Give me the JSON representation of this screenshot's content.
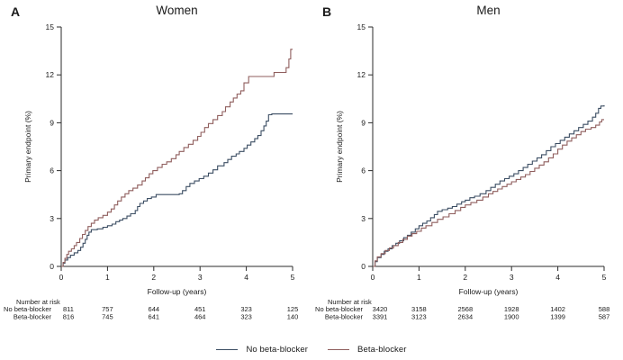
{
  "figure": {
    "background": "#ffffff",
    "legend": {
      "items": [
        {
          "label": "No beta-blocker",
          "color": "#3c4e63"
        },
        {
          "label": "Beta-blocker",
          "color": "#8f5e5d"
        }
      ]
    }
  },
  "chart_data": [
    {
      "type": "line",
      "subtype": "kaplan-meier-cumulative-incidence-step",
      "panel_letter": "A",
      "title": "Women",
      "xlabel": "Follow-up (years)",
      "ylabel": "Primary endpoint (%)",
      "xlim": [
        0,
        5
      ],
      "ylim": [
        0,
        15
      ],
      "xticks": [
        0,
        1,
        2,
        3,
        4,
        5
      ],
      "yticks": [
        0,
        3,
        6,
        9,
        12,
        15
      ],
      "grid": false,
      "legend_position": "figure-bottom-center",
      "series": [
        {
          "name": "No beta-blocker",
          "color": "#3c4e63",
          "points": [
            [
              0,
              0
            ],
            [
              0.04,
              0.2
            ],
            [
              0.08,
              0.4
            ],
            [
              0.14,
              0.55
            ],
            [
              0.2,
              0.7
            ],
            [
              0.28,
              0.85
            ],
            [
              0.36,
              1.0
            ],
            [
              0.42,
              1.2
            ],
            [
              0.47,
              1.45
            ],
            [
              0.52,
              1.7
            ],
            [
              0.56,
              1.95
            ],
            [
              0.6,
              2.15
            ],
            [
              0.65,
              2.3
            ],
            [
              0.78,
              2.35
            ],
            [
              0.9,
              2.45
            ],
            [
              1.0,
              2.55
            ],
            [
              1.1,
              2.65
            ],
            [
              1.18,
              2.8
            ],
            [
              1.26,
              2.9
            ],
            [
              1.33,
              3.0
            ],
            [
              1.42,
              3.15
            ],
            [
              1.5,
              3.3
            ],
            [
              1.6,
              3.5
            ],
            [
              1.65,
              3.75
            ],
            [
              1.7,
              3.95
            ],
            [
              1.78,
              4.1
            ],
            [
              1.86,
              4.25
            ],
            [
              1.95,
              4.35
            ],
            [
              2.05,
              4.5
            ],
            [
              2.55,
              4.55
            ],
            [
              2.62,
              4.75
            ],
            [
              2.7,
              5.0
            ],
            [
              2.78,
              5.2
            ],
            [
              2.88,
              5.35
            ],
            [
              2.98,
              5.5
            ],
            [
              3.08,
              5.65
            ],
            [
              3.18,
              5.85
            ],
            [
              3.28,
              6.05
            ],
            [
              3.38,
              6.3
            ],
            [
              3.52,
              6.5
            ],
            [
              3.6,
              6.7
            ],
            [
              3.68,
              6.9
            ],
            [
              3.78,
              7.05
            ],
            [
              3.85,
              7.2
            ],
            [
              3.95,
              7.4
            ],
            [
              4.02,
              7.6
            ],
            [
              4.1,
              7.8
            ],
            [
              4.18,
              8.0
            ],
            [
              4.25,
              8.2
            ],
            [
              4.32,
              8.5
            ],
            [
              4.38,
              8.8
            ],
            [
              4.43,
              9.1
            ],
            [
              4.48,
              9.5
            ],
            [
              4.55,
              9.55
            ],
            [
              5.0,
              9.55
            ]
          ]
        },
        {
          "name": "Beta-blocker",
          "color": "#8f5e5d",
          "points": [
            [
              0,
              0
            ],
            [
              0.04,
              0.25
            ],
            [
              0.08,
              0.5
            ],
            [
              0.12,
              0.75
            ],
            [
              0.16,
              0.95
            ],
            [
              0.22,
              1.1
            ],
            [
              0.28,
              1.3
            ],
            [
              0.33,
              1.5
            ],
            [
              0.4,
              1.75
            ],
            [
              0.46,
              2.0
            ],
            [
              0.52,
              2.25
            ],
            [
              0.58,
              2.5
            ],
            [
              0.65,
              2.7
            ],
            [
              0.72,
              2.9
            ],
            [
              0.8,
              3.05
            ],
            [
              0.9,
              3.2
            ],
            [
              1.0,
              3.4
            ],
            [
              1.08,
              3.6
            ],
            [
              1.15,
              3.85
            ],
            [
              1.22,
              4.1
            ],
            [
              1.3,
              4.35
            ],
            [
              1.38,
              4.55
            ],
            [
              1.46,
              4.75
            ],
            [
              1.55,
              4.9
            ],
            [
              1.65,
              5.1
            ],
            [
              1.75,
              5.35
            ],
            [
              1.82,
              5.55
            ],
            [
              1.9,
              5.8
            ],
            [
              1.98,
              6.0
            ],
            [
              2.08,
              6.2
            ],
            [
              2.18,
              6.4
            ],
            [
              2.28,
              6.55
            ],
            [
              2.38,
              6.75
            ],
            [
              2.48,
              7.0
            ],
            [
              2.55,
              7.2
            ],
            [
              2.65,
              7.45
            ],
            [
              2.75,
              7.65
            ],
            [
              2.85,
              7.9
            ],
            [
              2.95,
              8.15
            ],
            [
              3.02,
              8.4
            ],
            [
              3.1,
              8.7
            ],
            [
              3.18,
              8.95
            ],
            [
              3.28,
              9.2
            ],
            [
              3.38,
              9.45
            ],
            [
              3.48,
              9.7
            ],
            [
              3.55,
              10.0
            ],
            [
              3.65,
              10.3
            ],
            [
              3.72,
              10.55
            ],
            [
              3.8,
              10.8
            ],
            [
              3.88,
              11.0
            ],
            [
              3.95,
              11.5
            ],
            [
              4.05,
              11.9
            ],
            [
              4.55,
              11.9
            ],
            [
              4.6,
              12.15
            ],
            [
              4.82,
              12.15
            ],
            [
              4.86,
              12.45
            ],
            [
              4.92,
              13.0
            ],
            [
              4.96,
              13.6
            ],
            [
              5.0,
              13.6
            ]
          ]
        }
      ],
      "number_at_risk": {
        "header": "Number at risk",
        "rows": [
          {
            "label": "No beta-blocker",
            "values": [
              "811",
              "757",
              "644",
              "451",
              "323",
              "125"
            ]
          },
          {
            "label": "Beta-blocker",
            "values": [
              "816",
              "745",
              "641",
              "464",
              "323",
              "140"
            ]
          }
        ]
      }
    },
    {
      "type": "line",
      "subtype": "kaplan-meier-cumulative-incidence-step",
      "panel_letter": "B",
      "title": "Men",
      "xlabel": "Follow-up (years)",
      "ylabel": "Primary endpoint (%)",
      "xlim": [
        0,
        5
      ],
      "ylim": [
        0,
        15
      ],
      "xticks": [
        0,
        1,
        2,
        3,
        4,
        5
      ],
      "yticks": [
        0,
        3,
        6,
        9,
        12,
        15
      ],
      "grid": false,
      "legend_position": "figure-bottom-center",
      "series": [
        {
          "name": "No beta-blocker",
          "color": "#3c4e63",
          "points": [
            [
              0,
              0
            ],
            [
              0.05,
              0.3
            ],
            [
              0.1,
              0.55
            ],
            [
              0.18,
              0.75
            ],
            [
              0.25,
              0.95
            ],
            [
              0.33,
              1.1
            ],
            [
              0.42,
              1.3
            ],
            [
              0.5,
              1.45
            ],
            [
              0.58,
              1.6
            ],
            [
              0.67,
              1.8
            ],
            [
              0.75,
              1.95
            ],
            [
              0.83,
              2.15
            ],
            [
              0.92,
              2.35
            ],
            [
              1.0,
              2.55
            ],
            [
              1.08,
              2.7
            ],
            [
              1.17,
              2.85
            ],
            [
              1.25,
              3.05
            ],
            [
              1.33,
              3.25
            ],
            [
              1.4,
              3.45
            ],
            [
              1.5,
              3.55
            ],
            [
              1.62,
              3.65
            ],
            [
              1.72,
              3.75
            ],
            [
              1.82,
              3.9
            ],
            [
              1.92,
              4.05
            ],
            [
              2.0,
              4.15
            ],
            [
              2.1,
              4.3
            ],
            [
              2.2,
              4.4
            ],
            [
              2.32,
              4.55
            ],
            [
              2.45,
              4.75
            ],
            [
              2.55,
              4.95
            ],
            [
              2.65,
              5.15
            ],
            [
              2.75,
              5.35
            ],
            [
              2.85,
              5.5
            ],
            [
              2.95,
              5.65
            ],
            [
              3.05,
              5.8
            ],
            [
              3.15,
              6.0
            ],
            [
              3.25,
              6.2
            ],
            [
              3.35,
              6.4
            ],
            [
              3.45,
              6.6
            ],
            [
              3.55,
              6.8
            ],
            [
              3.65,
              7.0
            ],
            [
              3.75,
              7.25
            ],
            [
              3.85,
              7.5
            ],
            [
              3.95,
              7.7
            ],
            [
              4.05,
              7.9
            ],
            [
              4.15,
              8.1
            ],
            [
              4.25,
              8.3
            ],
            [
              4.35,
              8.5
            ],
            [
              4.45,
              8.7
            ],
            [
              4.55,
              8.9
            ],
            [
              4.65,
              9.1
            ],
            [
              4.75,
              9.35
            ],
            [
              4.82,
              9.6
            ],
            [
              4.88,
              9.9
            ],
            [
              4.93,
              10.05
            ],
            [
              5.0,
              10.1
            ]
          ]
        },
        {
          "name": "Beta-blocker",
          "color": "#8f5e5d",
          "points": [
            [
              0,
              0
            ],
            [
              0.05,
              0.35
            ],
            [
              0.1,
              0.6
            ],
            [
              0.18,
              0.8
            ],
            [
              0.27,
              1.0
            ],
            [
              0.36,
              1.15
            ],
            [
              0.45,
              1.3
            ],
            [
              0.55,
              1.5
            ],
            [
              0.65,
              1.7
            ],
            [
              0.75,
              1.9
            ],
            [
              0.85,
              2.05
            ],
            [
              0.95,
              2.2
            ],
            [
              1.05,
              2.4
            ],
            [
              1.15,
              2.55
            ],
            [
              1.28,
              2.75
            ],
            [
              1.4,
              2.95
            ],
            [
              1.52,
              3.1
            ],
            [
              1.65,
              3.3
            ],
            [
              1.78,
              3.5
            ],
            [
              1.9,
              3.7
            ],
            [
              2.0,
              3.85
            ],
            [
              2.12,
              4.0
            ],
            [
              2.25,
              4.15
            ],
            [
              2.38,
              4.35
            ],
            [
              2.5,
              4.55
            ],
            [
              2.6,
              4.7
            ],
            [
              2.7,
              4.85
            ],
            [
              2.8,
              5.0
            ],
            [
              2.9,
              5.15
            ],
            [
              3.0,
              5.3
            ],
            [
              3.1,
              5.45
            ],
            [
              3.2,
              5.6
            ],
            [
              3.3,
              5.75
            ],
            [
              3.4,
              5.95
            ],
            [
              3.5,
              6.15
            ],
            [
              3.6,
              6.35
            ],
            [
              3.7,
              6.55
            ],
            [
              3.8,
              6.8
            ],
            [
              3.9,
              7.05
            ],
            [
              4.0,
              7.35
            ],
            [
              4.1,
              7.6
            ],
            [
              4.2,
              7.85
            ],
            [
              4.3,
              8.05
            ],
            [
              4.4,
              8.25
            ],
            [
              4.5,
              8.45
            ],
            [
              4.6,
              8.6
            ],
            [
              4.72,
              8.7
            ],
            [
              4.82,
              8.85
            ],
            [
              4.9,
              9.05
            ],
            [
              4.95,
              9.2
            ],
            [
              5.0,
              9.2
            ]
          ]
        }
      ],
      "number_at_risk": {
        "header": "Number at risk",
        "rows": [
          {
            "label": "No beta-blocker",
            "values": [
              "3420",
              "3158",
              "2568",
              "1928",
              "1402",
              "588"
            ]
          },
          {
            "label": "Beta-blocker",
            "values": [
              "3391",
              "3123",
              "2634",
              "1900",
              "1399",
              "587"
            ]
          }
        ]
      }
    }
  ]
}
